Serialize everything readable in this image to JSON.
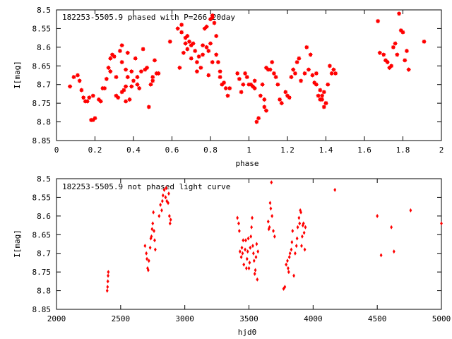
{
  "chart_data": [
    {
      "type": "scatter",
      "title": "182253-5505.9 phased with P=266.20day",
      "xlabel": "phase",
      "ylabel": "I[mag]",
      "xlim": [
        0,
        2
      ],
      "ylim": [
        8.85,
        8.5
      ],
      "y_inverted": true,
      "xticks": [
        "0",
        "0.2",
        "0.4",
        "0.6",
        "0.8",
        "1",
        "1.2",
        "1.4",
        "1.6",
        "1.8",
        "2"
      ],
      "yticks": [
        "8.5",
        "8.55",
        "8.6",
        "8.65",
        "8.7",
        "8.75",
        "8.8",
        "8.85"
      ],
      "marker_color": "#ff0000",
      "marker": "star",
      "points": [
        [
          0.07,
          8.705
        ],
        [
          0.09,
          8.68
        ],
        [
          0.11,
          8.675
        ],
        [
          0.12,
          8.69
        ],
        [
          0.13,
          8.715
        ],
        [
          0.14,
          8.735
        ],
        [
          0.15,
          8.745
        ],
        [
          0.16,
          8.745
        ],
        [
          0.17,
          8.735
        ],
        [
          0.18,
          8.795
        ],
        [
          0.19,
          8.795
        ],
        [
          0.19,
          8.73
        ],
        [
          0.2,
          8.79
        ],
        [
          0.22,
          8.74
        ],
        [
          0.23,
          8.745
        ],
        [
          0.24,
          8.71
        ],
        [
          0.25,
          8.71
        ],
        [
          0.26,
          8.685
        ],
        [
          0.27,
          8.655
        ],
        [
          0.28,
          8.63
        ],
        [
          0.28,
          8.665
        ],
        [
          0.29,
          8.62
        ],
        [
          0.3,
          8.625
        ],
        [
          0.31,
          8.68
        ],
        [
          0.31,
          8.73
        ],
        [
          0.32,
          8.735
        ],
        [
          0.33,
          8.61
        ],
        [
          0.34,
          8.64
        ],
        [
          0.34,
          8.595
        ],
        [
          0.34,
          8.72
        ],
        [
          0.35,
          8.715
        ],
        [
          0.36,
          8.705
        ],
        [
          0.36,
          8.66
        ],
        [
          0.36,
          8.745
        ],
        [
          0.37,
          8.68
        ],
        [
          0.37,
          8.615
        ],
        [
          0.38,
          8.74
        ],
        [
          0.39,
          8.705
        ],
        [
          0.39,
          8.665
        ],
        [
          0.4,
          8.69
        ],
        [
          0.41,
          8.63
        ],
        [
          0.42,
          8.68
        ],
        [
          0.42,
          8.7
        ],
        [
          0.43,
          8.71
        ],
        [
          0.44,
          8.665
        ],
        [
          0.45,
          8.605
        ],
        [
          0.46,
          8.66
        ],
        [
          0.47,
          8.655
        ],
        [
          0.48,
          8.76
        ],
        [
          0.49,
          8.7
        ],
        [
          0.5,
          8.68
        ],
        [
          0.5,
          8.69
        ],
        [
          0.51,
          8.635
        ],
        [
          0.52,
          8.67
        ],
        [
          0.53,
          8.67
        ],
        [
          0.59,
          8.585
        ],
        [
          0.63,
          8.55
        ],
        [
          0.64,
          8.655
        ],
        [
          0.65,
          8.56
        ],
        [
          0.65,
          8.54
        ],
        [
          0.66,
          8.615
        ],
        [
          0.67,
          8.575
        ],
        [
          0.67,
          8.59
        ],
        [
          0.68,
          8.605
        ],
        [
          0.68,
          8.57
        ],
        [
          0.69,
          8.585
        ],
        [
          0.7,
          8.63
        ],
        [
          0.7,
          8.595
        ],
        [
          0.71,
          8.59
        ],
        [
          0.72,
          8.61
        ],
        [
          0.73,
          8.64
        ],
        [
          0.73,
          8.665
        ],
        [
          0.74,
          8.625
        ],
        [
          0.75,
          8.655
        ],
        [
          0.76,
          8.595
        ],
        [
          0.76,
          8.62
        ],
        [
          0.77,
          8.55
        ],
        [
          0.78,
          8.6
        ],
        [
          0.78,
          8.545
        ],
        [
          0.79,
          8.61
        ],
        [
          0.79,
          8.675
        ],
        [
          0.8,
          8.59
        ],
        [
          0.8,
          8.525
        ],
        [
          0.81,
          8.515
        ],
        [
          0.81,
          8.52
        ],
        [
          0.81,
          8.64
        ],
        [
          0.82,
          8.535
        ],
        [
          0.83,
          8.57
        ],
        [
          0.83,
          8.62
        ],
        [
          0.84,
          8.64
        ],
        [
          0.85,
          8.68
        ],
        [
          0.85,
          8.665
        ],
        [
          0.86,
          8.7
        ],
        [
          0.87,
          8.695
        ],
        [
          0.88,
          8.71
        ],
        [
          0.89,
          8.73
        ],
        [
          0.9,
          8.71
        ],
        [
          0.94,
          8.67
        ],
        [
          0.95,
          8.685
        ],
        [
          0.96,
          8.72
        ],
        [
          0.97,
          8.7
        ],
        [
          0.98,
          8.67
        ],
        [
          0.99,
          8.68
        ],
        [
          1.0,
          8.7
        ],
        [
          1.01,
          8.7
        ],
        [
          1.02,
          8.705
        ],
        [
          1.03,
          8.69
        ],
        [
          1.03,
          8.71
        ],
        [
          1.04,
          8.8
        ],
        [
          1.05,
          8.79
        ],
        [
          1.06,
          8.73
        ],
        [
          1.07,
          8.7
        ],
        [
          1.08,
          8.74
        ],
        [
          1.08,
          8.76
        ],
        [
          1.09,
          8.77
        ],
        [
          1.09,
          8.655
        ],
        [
          1.1,
          8.66
        ],
        [
          1.11,
          8.66
        ],
        [
          1.12,
          8.64
        ],
        [
          1.13,
          8.67
        ],
        [
          1.14,
          8.68
        ],
        [
          1.15,
          8.7
        ],
        [
          1.16,
          8.74
        ],
        [
          1.17,
          8.75
        ],
        [
          1.19,
          8.72
        ],
        [
          1.2,
          8.73
        ],
        [
          1.21,
          8.735
        ],
        [
          1.22,
          8.68
        ],
        [
          1.23,
          8.66
        ],
        [
          1.24,
          8.67
        ],
        [
          1.25,
          8.64
        ],
        [
          1.26,
          8.63
        ],
        [
          1.27,
          8.69
        ],
        [
          1.29,
          8.67
        ],
        [
          1.3,
          8.6
        ],
        [
          1.31,
          8.66
        ],
        [
          1.32,
          8.62
        ],
        [
          1.33,
          8.675
        ],
        [
          1.34,
          8.695
        ],
        [
          1.35,
          8.7
        ],
        [
          1.35,
          8.67
        ],
        [
          1.36,
          8.73
        ],
        [
          1.37,
          8.715
        ],
        [
          1.37,
          8.74
        ],
        [
          1.38,
          8.74
        ],
        [
          1.38,
          8.73
        ],
        [
          1.39,
          8.72
        ],
        [
          1.39,
          8.76
        ],
        [
          1.4,
          8.75
        ],
        [
          1.4,
          8.75
        ],
        [
          1.41,
          8.7
        ],
        [
          1.42,
          8.65
        ],
        [
          1.43,
          8.67
        ],
        [
          1.44,
          8.66
        ],
        [
          1.45,
          8.67
        ],
        [
          1.67,
          8.53
        ],
        [
          1.68,
          8.615
        ],
        [
          1.7,
          8.62
        ],
        [
          1.71,
          8.635
        ],
        [
          1.72,
          8.64
        ],
        [
          1.73,
          8.655
        ],
        [
          1.74,
          8.65
        ],
        [
          1.75,
          8.6
        ],
        [
          1.76,
          8.59
        ],
        [
          1.77,
          8.62
        ],
        [
          1.78,
          8.51
        ],
        [
          1.79,
          8.555
        ],
        [
          1.8,
          8.56
        ],
        [
          1.81,
          8.635
        ],
        [
          1.82,
          8.61
        ],
        [
          1.83,
          8.66
        ],
        [
          1.91,
          8.585
        ]
      ]
    },
    {
      "type": "scatter",
      "title": "182253-5505.9 not phased light curve",
      "xlabel": "hjd0",
      "ylabel": "I[mag]",
      "xlim": [
        2000,
        5000
      ],
      "ylim": [
        8.85,
        8.5
      ],
      "y_inverted": true,
      "xticks": [
        "2000",
        "2500",
        "3000",
        "3500",
        "4000",
        "4500",
        "5000"
      ],
      "yticks": [
        "8.5",
        "8.55",
        "8.6",
        "8.65",
        "8.7",
        "8.75",
        "8.8",
        "8.85"
      ],
      "marker_color": "#ff0000",
      "marker": "diamond",
      "points": [
        [
          2395,
          8.8
        ],
        [
          2398,
          8.79
        ],
        [
          2400,
          8.775
        ],
        [
          2402,
          8.76
        ],
        [
          2404,
          8.75
        ],
        [
          2690,
          8.68
        ],
        [
          2700,
          8.7
        ],
        [
          2705,
          8.715
        ],
        [
          2710,
          8.74
        ],
        [
          2715,
          8.745
        ],
        [
          2720,
          8.72
        ],
        [
          2730,
          8.685
        ],
        [
          2735,
          8.66
        ],
        [
          2740,
          8.655
        ],
        [
          2745,
          8.635
        ],
        [
          2750,
          8.62
        ],
        [
          2755,
          8.59
        ],
        [
          2760,
          8.64
        ],
        [
          2765,
          8.665
        ],
        [
          2770,
          8.69
        ],
        [
          2800,
          8.6
        ],
        [
          2810,
          8.57
        ],
        [
          2820,
          8.585
        ],
        [
          2825,
          8.56
        ],
        [
          2830,
          8.545
        ],
        [
          2840,
          8.53
        ],
        [
          2850,
          8.55
        ],
        [
          2855,
          8.525
        ],
        [
          2860,
          8.56
        ],
        [
          2870,
          8.565
        ],
        [
          2875,
          8.54
        ],
        [
          2880,
          8.6
        ],
        [
          2885,
          8.62
        ],
        [
          2890,
          8.61
        ],
        [
          3410,
          8.605
        ],
        [
          3420,
          8.62
        ],
        [
          3425,
          8.64
        ],
        [
          3430,
          8.695
        ],
        [
          3440,
          8.71
        ],
        [
          3445,
          8.685
        ],
        [
          3450,
          8.7
        ],
        [
          3455,
          8.665
        ],
        [
          3460,
          8.73
        ],
        [
          3470,
          8.69
        ],
        [
          3475,
          8.665
        ],
        [
          3480,
          8.74
        ],
        [
          3485,
          8.715
        ],
        [
          3490,
          8.695
        ],
        [
          3495,
          8.66
        ],
        [
          3500,
          8.74
        ],
        [
          3505,
          8.725
        ],
        [
          3510,
          8.685
        ],
        [
          3515,
          8.655
        ],
        [
          3520,
          8.63
        ],
        [
          3525,
          8.605
        ],
        [
          3530,
          8.68
        ],
        [
          3535,
          8.7
        ],
        [
          3540,
          8.72
        ],
        [
          3545,
          8.755
        ],
        [
          3550,
          8.745
        ],
        [
          3555,
          8.71
        ],
        [
          3560,
          8.675
        ],
        [
          3565,
          8.77
        ],
        [
          3570,
          8.695
        ],
        [
          3650,
          8.615
        ],
        [
          3655,
          8.635
        ],
        [
          3660,
          8.63
        ],
        [
          3665,
          8.565
        ],
        [
          3670,
          8.58
        ],
        [
          3675,
          8.51
        ],
        [
          3680,
          8.6
        ],
        [
          3690,
          8.64
        ],
        [
          3700,
          8.655
        ],
        [
          3770,
          8.795
        ],
        [
          3780,
          8.79
        ],
        [
          3790,
          8.73
        ],
        [
          3800,
          8.72
        ],
        [
          3805,
          8.74
        ],
        [
          3810,
          8.75
        ],
        [
          3815,
          8.71
        ],
        [
          3820,
          8.7
        ],
        [
          3830,
          8.69
        ],
        [
          3835,
          8.67
        ],
        [
          3840,
          8.64
        ],
        [
          3850,
          8.76
        ],
        [
          3860,
          8.7
        ],
        [
          3870,
          8.68
        ],
        [
          3875,
          8.66
        ],
        [
          3880,
          8.63
        ],
        [
          3890,
          8.605
        ],
        [
          3895,
          8.62
        ],
        [
          3900,
          8.585
        ],
        [
          3905,
          8.59
        ],
        [
          3910,
          8.68
        ],
        [
          3915,
          8.655
        ],
        [
          3920,
          8.625
        ],
        [
          3925,
          8.62
        ],
        [
          3930,
          8.645
        ],
        [
          3935,
          8.69
        ],
        [
          3940,
          8.63
        ],
        [
          4170,
          8.53
        ],
        [
          4500,
          8.6
        ],
        [
          4530,
          8.705
        ],
        [
          4610,
          8.63
        ],
        [
          4630,
          8.695
        ],
        [
          4760,
          8.585
        ],
        [
          5000,
          8.62
        ]
      ]
    }
  ]
}
